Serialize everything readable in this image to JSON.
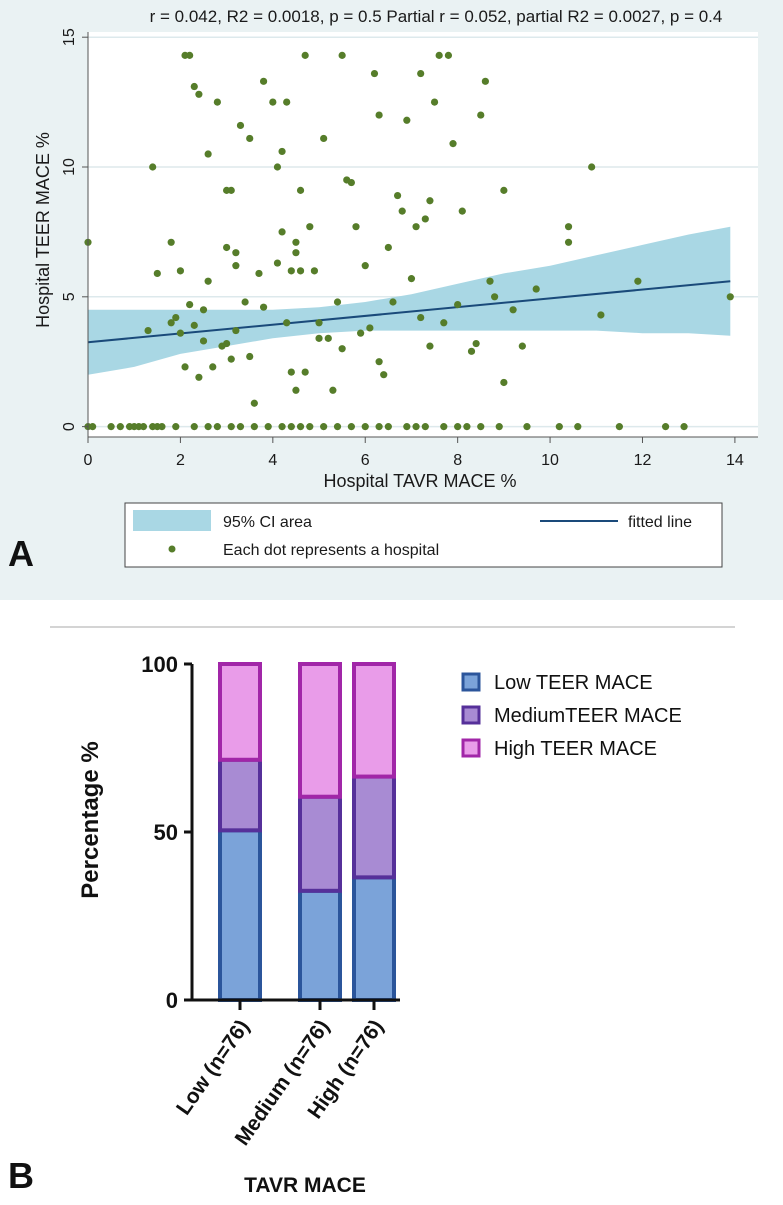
{
  "chart_data": [
    {
      "type": "scatter",
      "panel_label": "A",
      "title": "r = 0.042, R2 = 0.0018, p = 0.5 Partial r = 0.052, partial R2 = 0.0027, p = 0.4",
      "xlabel": "Hospital TAVR MACE %",
      "ylabel": "Hospital TEER MACE %",
      "xlim": [
        0,
        14.5
      ],
      "ylim": [
        -0.4,
        15.2
      ],
      "xticks": [
        0,
        2,
        4,
        6,
        8,
        10,
        12,
        14
      ],
      "yticks": [
        0,
        5,
        10,
        15
      ],
      "grid": true,
      "legend": {
        "ci_label": "95% CI area",
        "line_label": "fitted line",
        "dot_label": "Each dot represents a hospital"
      },
      "fitted_line": {
        "x": [
          0,
          13.9
        ],
        "y": [
          3.25,
          5.6
        ]
      },
      "ci_band": {
        "x": [
          0,
          1,
          2,
          3,
          4,
          5,
          6,
          7,
          8,
          9,
          10,
          11,
          12,
          13,
          13.9
        ],
        "upper": [
          4.5,
          4.5,
          4.5,
          4.5,
          4.5,
          4.6,
          4.8,
          5.1,
          5.5,
          5.9,
          6.2,
          6.6,
          7.0,
          7.4,
          7.7
        ],
        "lower": [
          2.0,
          2.3,
          2.8,
          3.1,
          3.4,
          3.6,
          3.7,
          3.7,
          3.7,
          3.7,
          3.7,
          3.7,
          3.6,
          3.6,
          3.5
        ]
      },
      "points": {
        "x": [
          0.0,
          0.0,
          0.7,
          0.9,
          1.1,
          1.3,
          1.4,
          1.4,
          1.5,
          1.8,
          1.9,
          2.0,
          2.1,
          2.2,
          2.3,
          2.4,
          2.5,
          2.5,
          2.6,
          2.6,
          2.8,
          3.0,
          3.0,
          3.1,
          3.2,
          3.2,
          3.3,
          3.4,
          3.5,
          3.7,
          3.8,
          4.0,
          4.1,
          4.2,
          4.3,
          4.4,
          4.5,
          4.5,
          4.6,
          4.7,
          4.8,
          5.0,
          5.1,
          5.3,
          5.4,
          5.5,
          5.7,
          5.9,
          6.0,
          6.1,
          6.3,
          6.4,
          6.5,
          6.6,
          6.8,
          7.0,
          7.1,
          7.2,
          7.3,
          7.4,
          7.5,
          7.7,
          7.8,
          8.0,
          8.1,
          8.3,
          8.5,
          8.6,
          8.7,
          9.0,
          9.2,
          9.4,
          9.7,
          10.4,
          10.9,
          11.1,
          11.9,
          13.9,
          2.1,
          2.3,
          3.2,
          4.1,
          4.9,
          5.5,
          7.2,
          7.9,
          1.8,
          2.4,
          3.8,
          4.6,
          5.2,
          6.7,
          7.6,
          8.4,
          9.0,
          10.4,
          2.7,
          3.5,
          4.3,
          5.6,
          6.9,
          8.8,
          2.0,
          2.9,
          4.5,
          4.7,
          5.0,
          6.3,
          3.1,
          4.2,
          1.5,
          2.2,
          3.0,
          3.6,
          4.4,
          5.8,
          6.2,
          7.4,
          8.2,
          0.1,
          0.5,
          1.0,
          1.2,
          1.6,
          1.9,
          2.3,
          2.6,
          2.8,
          3.1,
          3.3,
          3.6,
          3.9,
          4.2,
          4.4,
          4.6,
          4.8,
          5.1,
          5.4,
          5.7,
          6.0,
          6.3,
          6.5,
          6.9,
          7.1,
          7.3,
          7.7,
          8.0,
          8.5,
          8.9,
          9.5,
          10.2,
          10.6,
          11.5,
          12.5,
          12.9
        ],
        "y": [
          7.1,
          0.0,
          0.0,
          0.0,
          0.0,
          3.7,
          10.0,
          0.0,
          0.0,
          7.1,
          4.2,
          3.6,
          14.3,
          14.3,
          3.9,
          1.9,
          4.5,
          3.3,
          5.6,
          10.5,
          12.5,
          9.1,
          3.2,
          9.1,
          6.7,
          6.2,
          11.6,
          4.8,
          2.7,
          5.9,
          13.3,
          12.5,
          10.0,
          7.5,
          12.5,
          6.0,
          7.1,
          6.7,
          6.0,
          2.1,
          7.7,
          4.0,
          11.1,
          1.4,
          4.8,
          3.0,
          9.4,
          3.6,
          6.2,
          3.8,
          2.5,
          2.0,
          6.9,
          4.8,
          8.3,
          5.7,
          7.7,
          13.6,
          8.0,
          3.1,
          12.5,
          4.0,
          14.3,
          4.7,
          8.3,
          2.9,
          12.0,
          13.3,
          5.6,
          9.1,
          4.5,
          3.1,
          5.3,
          7.7,
          10.0,
          4.3,
          5.6,
          5.0,
          2.3,
          13.1,
          3.7,
          6.3,
          6.0,
          14.3,
          4.2,
          10.9,
          4.0,
          12.8,
          4.6,
          9.1,
          3.4,
          8.9,
          14.3,
          3.2,
          1.7,
          7.1,
          2.3,
          11.1,
          4.0,
          9.5,
          11.8,
          5.0,
          6.0,
          3.1,
          1.4,
          14.3,
          3.4,
          12.0,
          2.6,
          10.6,
          5.9,
          4.7,
          6.9,
          0.9,
          2.1,
          7.7,
          13.6,
          8.7,
          0.0,
          0.0,
          0.0,
          0.0,
          0.0,
          0.0,
          0.0,
          0.0,
          0.0,
          0.0,
          0.0,
          0.0,
          0.0,
          0.0,
          0.0,
          0.0,
          0.0,
          0.0,
          0.0,
          0.0,
          0.0,
          0.0,
          0.0,
          0.0,
          0.0,
          0.0,
          0.0,
          0.0,
          0.0,
          0.0,
          0.0,
          0.0,
          0.0,
          0.0,
          0.0,
          0.0,
          0.0
        ]
      },
      "colors": {
        "background": "#eaf2f3",
        "ci": "#a9d7e4",
        "line": "#1a4a7a",
        "points": "#567d2a"
      }
    },
    {
      "type": "bar",
      "stacked": true,
      "panel_label": "B",
      "xlabel": "TAVR MACE",
      "ylabel": "Percentage %",
      "ylim": [
        0,
        100
      ],
      "yticks": [
        0,
        50,
        100
      ],
      "categories": [
        "Low (n=76)",
        "Medium (n=76)",
        "High (n=76)"
      ],
      "series": [
        {
          "name": "Low TEER MACE",
          "values": [
            50.5,
            32.5,
            36.5
          ],
          "fill": "#7ba3d9",
          "stroke": "#2b559b"
        },
        {
          "name": "MediumTEER MACE",
          "values": [
            21.0,
            28.0,
            30.0
          ],
          "fill": "#a88bd3",
          "stroke": "#56309a"
        },
        {
          "name": "High TEER MACE",
          "values": [
            28.5,
            39.5,
            33.5
          ],
          "fill": "#e99ce9",
          "stroke": "#a126a8"
        }
      ]
    }
  ]
}
